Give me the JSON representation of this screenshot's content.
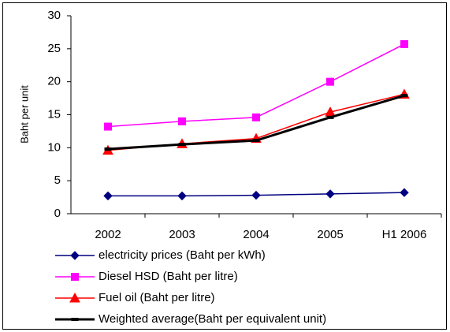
{
  "chart_data": {
    "type": "line",
    "y_label": "Baht per unit",
    "categories": [
      "2002",
      "2003",
      "2004",
      "2005",
      "H1 2006"
    ],
    "ylim": [
      0,
      30
    ],
    "yticks": [
      0,
      5,
      10,
      15,
      20,
      25,
      30
    ],
    "series": [
      {
        "name": "electricity prices (Baht per kWh)",
        "color": "#000080",
        "marker": "diamond",
        "values": [
          2.7,
          2.7,
          2.8,
          3.0,
          3.2
        ]
      },
      {
        "name": "Diesel HSD (Baht per litre)",
        "color": "#ff00ff",
        "marker": "square",
        "values": [
          13.2,
          14.0,
          14.6,
          20.0,
          25.7
        ]
      },
      {
        "name": "Fuel oil (Baht per litre)",
        "color": "#ff0000",
        "marker": "triangle",
        "values": [
          9.6,
          10.6,
          11.4,
          15.4,
          18.1
        ]
      },
      {
        "name": "Weighted average(Baht per equivalent unit)",
        "color": "#000000",
        "marker": "dash",
        "values": [
          9.8,
          10.5,
          11.1,
          14.6,
          17.9
        ]
      }
    ]
  }
}
